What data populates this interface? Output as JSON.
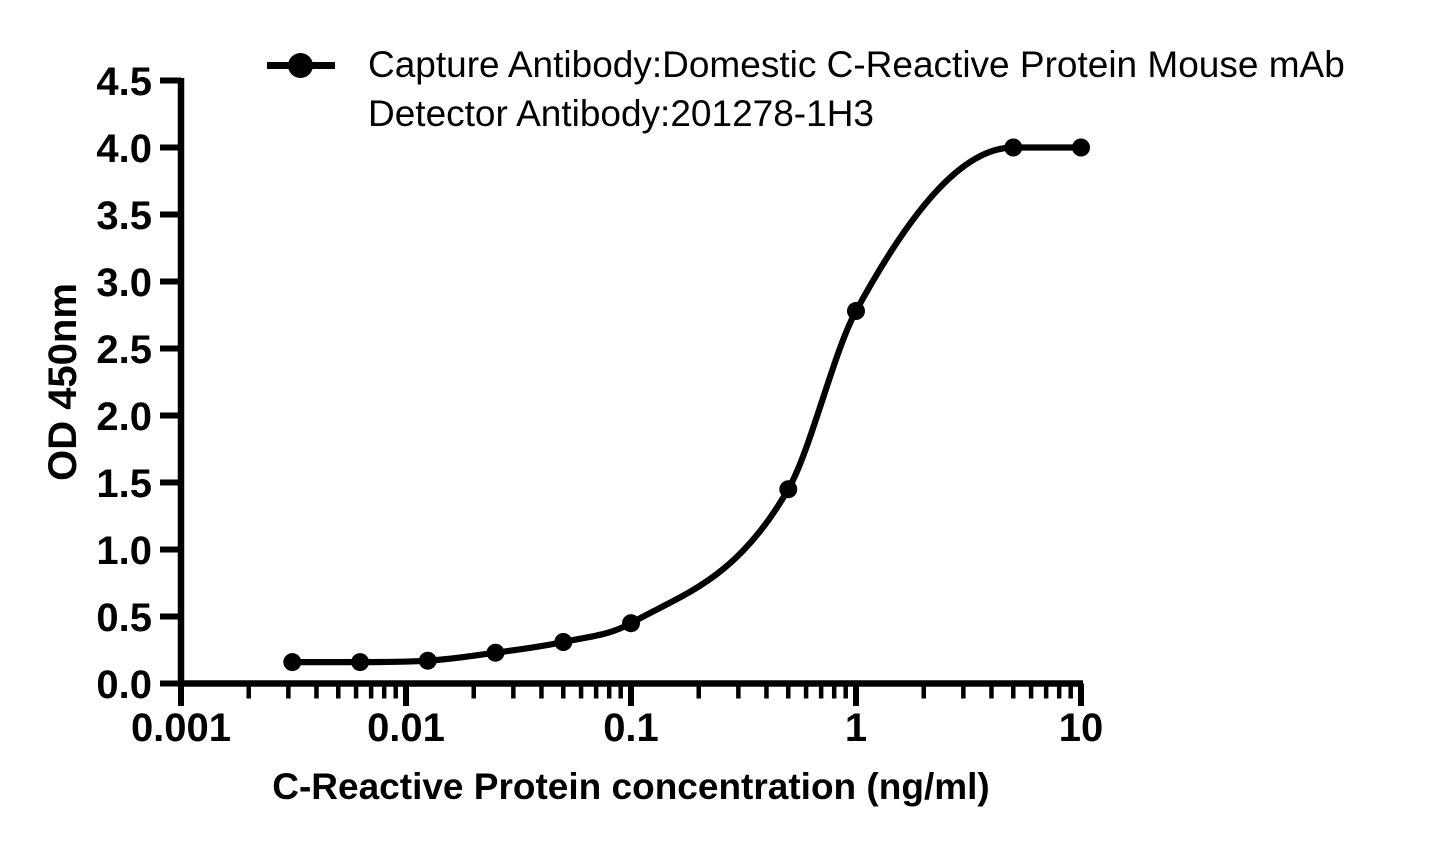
{
  "colors": {
    "foreground": "#000000",
    "background": "#ffffff"
  },
  "legend": {
    "marker": "filled-circle-on-line",
    "line1": "Capture Antibody:Domestic C-Reactive Protein Mouse mAb",
    "line2": "Detector Antibody:201278-1H3"
  },
  "chart_data": {
    "type": "line",
    "title": "",
    "xlabel": "C-Reactive Protein concentration (ng/ml)",
    "ylabel": "OD 450nm",
    "x_scale": "log10",
    "xlim": [
      0.001,
      10
    ],
    "ylim": [
      0,
      4.5
    ],
    "grid": false,
    "legend_position": "top-left",
    "x_tick_labels": [
      "0.001",
      "0.01",
      "0.1",
      "1",
      "10"
    ],
    "x_tick_values": [
      0.001,
      0.01,
      0.1,
      1,
      10
    ],
    "x_minor_ticks": "multiples 2-9 of each decade",
    "y_tick_labels": [
      "0.0",
      "0.5",
      "1.0",
      "1.5",
      "2.0",
      "2.5",
      "3.0",
      "3.5",
      "4.0",
      "4.5"
    ],
    "y_tick_values": [
      0,
      0.5,
      1,
      1.5,
      2,
      2.5,
      3,
      3.5,
      4,
      4.5
    ],
    "series": [
      {
        "name": "Capture Antibody:Domestic C-Reactive Protein Mouse mAb, Detector Antibody:201278-1H3",
        "color": "#000000",
        "marker": "filled-circle",
        "line_style": "sigmoid-fit",
        "x": [
          0.003125,
          0.00625,
          0.0125,
          0.025,
          0.05,
          0.1,
          0.5,
          1,
          5,
          10
        ],
        "y": [
          0.16,
          0.16,
          0.17,
          0.23,
          0.31,
          0.45,
          1.45,
          2.78,
          4.0,
          4.0
        ]
      }
    ]
  }
}
